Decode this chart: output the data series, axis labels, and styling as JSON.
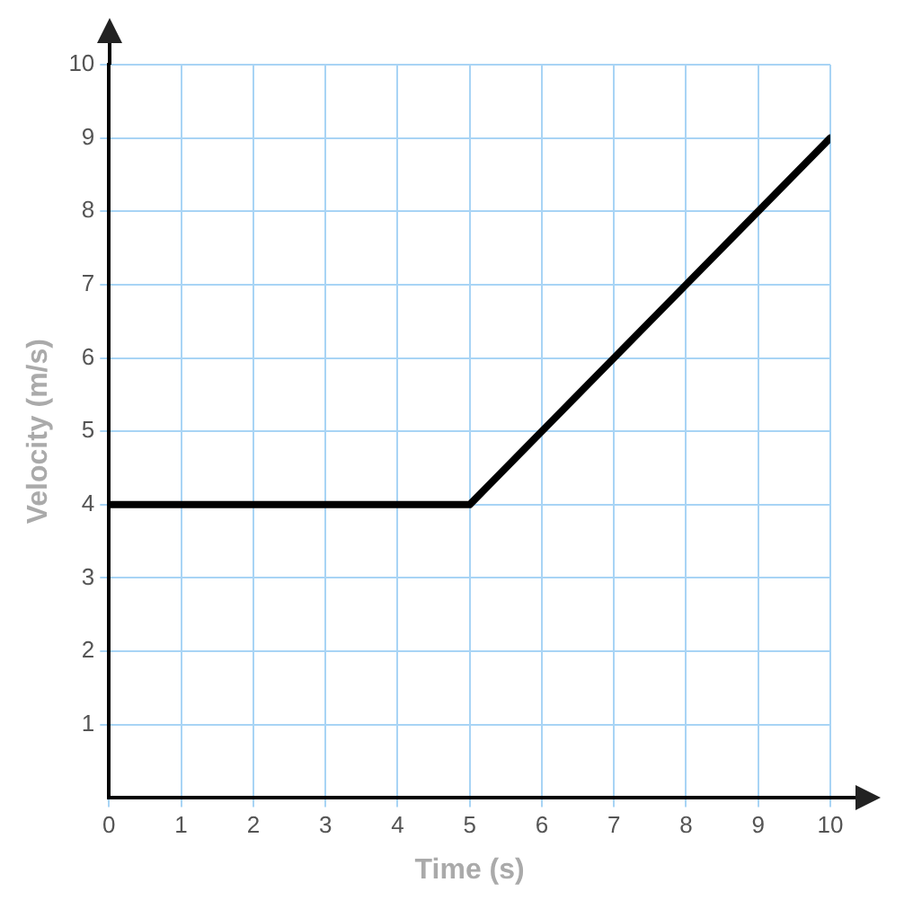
{
  "chart_data": {
    "type": "line",
    "xlabel": "Time (s)",
    "ylabel": "Velocity (m/s)",
    "x": [
      0,
      5,
      10
    ],
    "series": [
      {
        "color": "#000000",
        "values": [
          4,
          4,
          9
        ]
      }
    ],
    "xlim": [
      0,
      10
    ],
    "xticks": [
      0,
      1,
      2,
      3,
      4,
      5,
      6,
      7,
      8,
      9,
      10
    ],
    "ylim": [
      0,
      10
    ],
    "yticks": [
      1,
      2,
      3,
      4,
      5,
      6,
      7,
      8,
      9,
      10
    ],
    "grid": true,
    "legend": false,
    "marker": "none",
    "line_style": "solid"
  }
}
